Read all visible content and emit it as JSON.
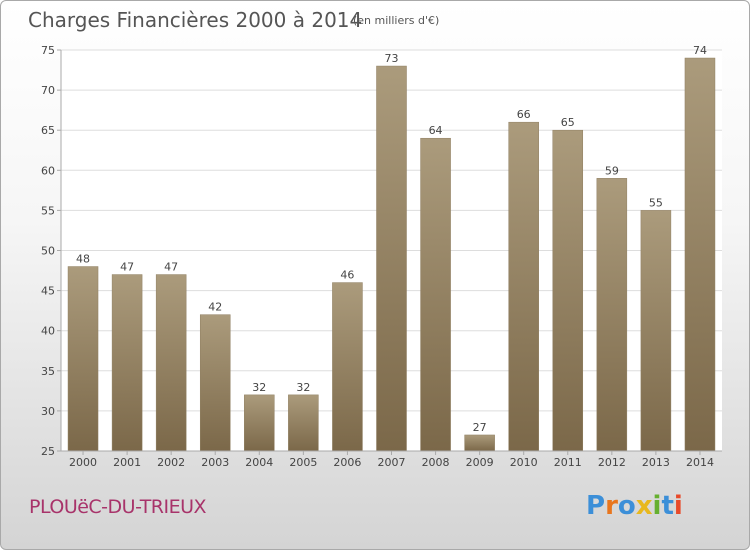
{
  "title": "Charges Financières 2000 à 2014",
  "subtitle": "(en milliers d'€)",
  "commune": "PLOUëC-DU-TRIEUX",
  "logo": {
    "text": "Proxiti",
    "letters": [
      "P",
      "r",
      "o",
      "x",
      "i",
      "t",
      "i"
    ],
    "colors": [
      "#3c8fd8",
      "#e8761e",
      "#3c8fd8",
      "#e8b81e",
      "#66b030",
      "#3c8fd8",
      "#e84a2a"
    ]
  },
  "colors": {
    "bar_top": "#ab9b7c",
    "bar_bottom": "#7b6849",
    "grid": "#dddddd",
    "axis": "#aaaaaa",
    "text": "#444444"
  },
  "chart_data": {
    "type": "bar",
    "categories": [
      "2000",
      "2001",
      "2002",
      "2003",
      "2004",
      "2005",
      "2006",
      "2007",
      "2008",
      "2009",
      "2010",
      "2011",
      "2012",
      "2013",
      "2014"
    ],
    "values": [
      48,
      47,
      47,
      42,
      32,
      32,
      46,
      73,
      64,
      27,
      66,
      65,
      59,
      55,
      74
    ],
    "ylim": [
      25,
      75
    ],
    "yticks": [
      25,
      30,
      35,
      40,
      45,
      50,
      55,
      60,
      65,
      70,
      75
    ],
    "grid": true,
    "data_labels": true
  }
}
